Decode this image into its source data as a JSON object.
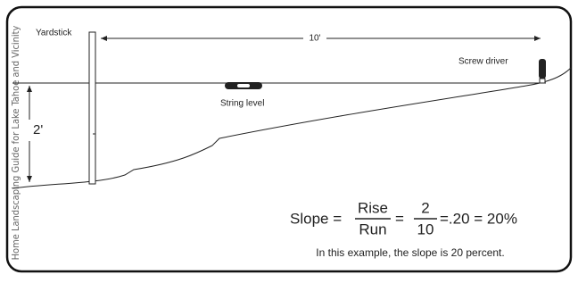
{
  "side_text": "Home Landscaping Guide for Lake Tahoe and Vicinity",
  "labels": {
    "yardstick": "Yardstick",
    "distance": "10'",
    "screw_driver": "Screw driver",
    "string_level": "String level",
    "height": "2'"
  },
  "formula": {
    "prefix": "Slope =",
    "numerator1": "Rise",
    "denominator1": "Run",
    "equals": "=",
    "numerator2": "2",
    "denominator2": "10",
    "result": "=.20 = 20%"
  },
  "caption": "In this example, the slope is 20 percent."
}
